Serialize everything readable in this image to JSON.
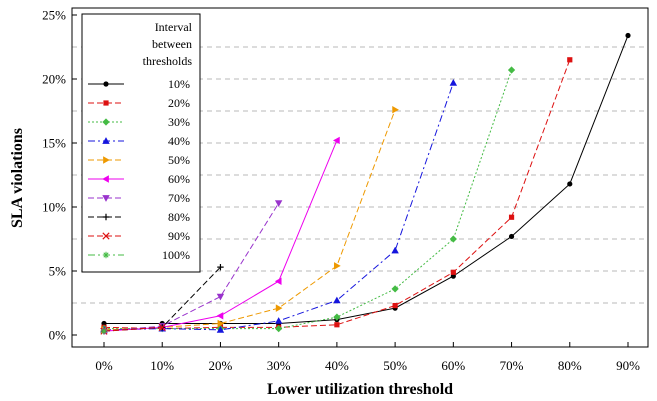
{
  "chart_data": {
    "type": "line",
    "xlabel": "Lower utilization threshold",
    "ylabel": "SLA violations",
    "x_tick_labels": [
      "0%",
      "10%",
      "20%",
      "30%",
      "40%",
      "50%",
      "60%",
      "70%",
      "80%",
      "90%"
    ],
    "y_tick_labels": [
      "0%",
      "5%",
      "10%",
      "15%",
      "20%",
      "25%"
    ],
    "ylim": [
      0,
      25
    ],
    "xlim": [
      0,
      90
    ],
    "grid": "horizontal dashed",
    "legend": {
      "title_lines": [
        "Interval",
        "between",
        "thresholds"
      ],
      "placement": "top-left"
    },
    "series": [
      {
        "name": "10%",
        "color": "#000000",
        "marker": "circle",
        "dash": "solid",
        "x": [
          0,
          10,
          20,
          30,
          40,
          50,
          60,
          70,
          80,
          90
        ],
        "y": [
          0.9,
          0.9,
          0.9,
          0.9,
          1.2,
          2.1,
          4.6,
          7.7,
          11.8,
          23.4
        ]
      },
      {
        "name": "20%",
        "color": "#dd1111",
        "marker": "square",
        "dash": "dash",
        "x": [
          0,
          10,
          20,
          30,
          40,
          50,
          60,
          70,
          80
        ],
        "y": [
          0.6,
          0.5,
          0.6,
          0.6,
          0.8,
          2.3,
          4.9,
          9.2,
          21.5
        ]
      },
      {
        "name": "30%",
        "color": "#44bb44",
        "marker": "diamond",
        "dash": "dot",
        "x": [
          0,
          10,
          20,
          30,
          40,
          50,
          60,
          70
        ],
        "y": [
          0.5,
          0.5,
          0.5,
          0.5,
          1.4,
          3.6,
          7.5,
          20.7
        ]
      },
      {
        "name": "40%",
        "color": "#1515dd",
        "marker": "triangle-up",
        "dash": "dashdot",
        "x": [
          0,
          10,
          20,
          30,
          40,
          50,
          60
        ],
        "y": [
          0.4,
          0.5,
          0.4,
          1.1,
          2.7,
          6.6,
          19.7
        ]
      },
      {
        "name": "50%",
        "color": "#ee9900",
        "marker": "triangle-right",
        "dash": "dash",
        "x": [
          0,
          10,
          20,
          30,
          40,
          50
        ],
        "y": [
          0.4,
          0.6,
          0.9,
          2.1,
          5.4,
          17.6
        ]
      },
      {
        "name": "60%",
        "color": "#ee00ee",
        "marker": "triangle-left",
        "dash": "solid",
        "x": [
          0,
          10,
          20,
          30,
          40
        ],
        "y": [
          0.3,
          0.6,
          1.5,
          4.2,
          15.2
        ]
      },
      {
        "name": "70%",
        "color": "#9933cc",
        "marker": "triangle-down",
        "dash": "dash",
        "x": [
          0,
          10,
          20,
          30
        ],
        "y": [
          0.3,
          0.7,
          3.0,
          10.3
        ]
      },
      {
        "name": "80%",
        "color": "#000000",
        "marker": "plus",
        "dash": "dash",
        "x": [
          0,
          10,
          20
        ],
        "y": [
          0.3,
          0.6,
          5.3
        ]
      },
      {
        "name": "90%",
        "color": "#dd1111",
        "marker": "cross",
        "dash": "dash",
        "x": [
          0,
          10
        ],
        "y": [
          0.3,
          0.6
        ]
      },
      {
        "name": "100%",
        "color": "#44bb44",
        "marker": "star",
        "dash": "dashdot",
        "x": [
          0
        ],
        "y": [
          0.3
        ]
      }
    ]
  }
}
